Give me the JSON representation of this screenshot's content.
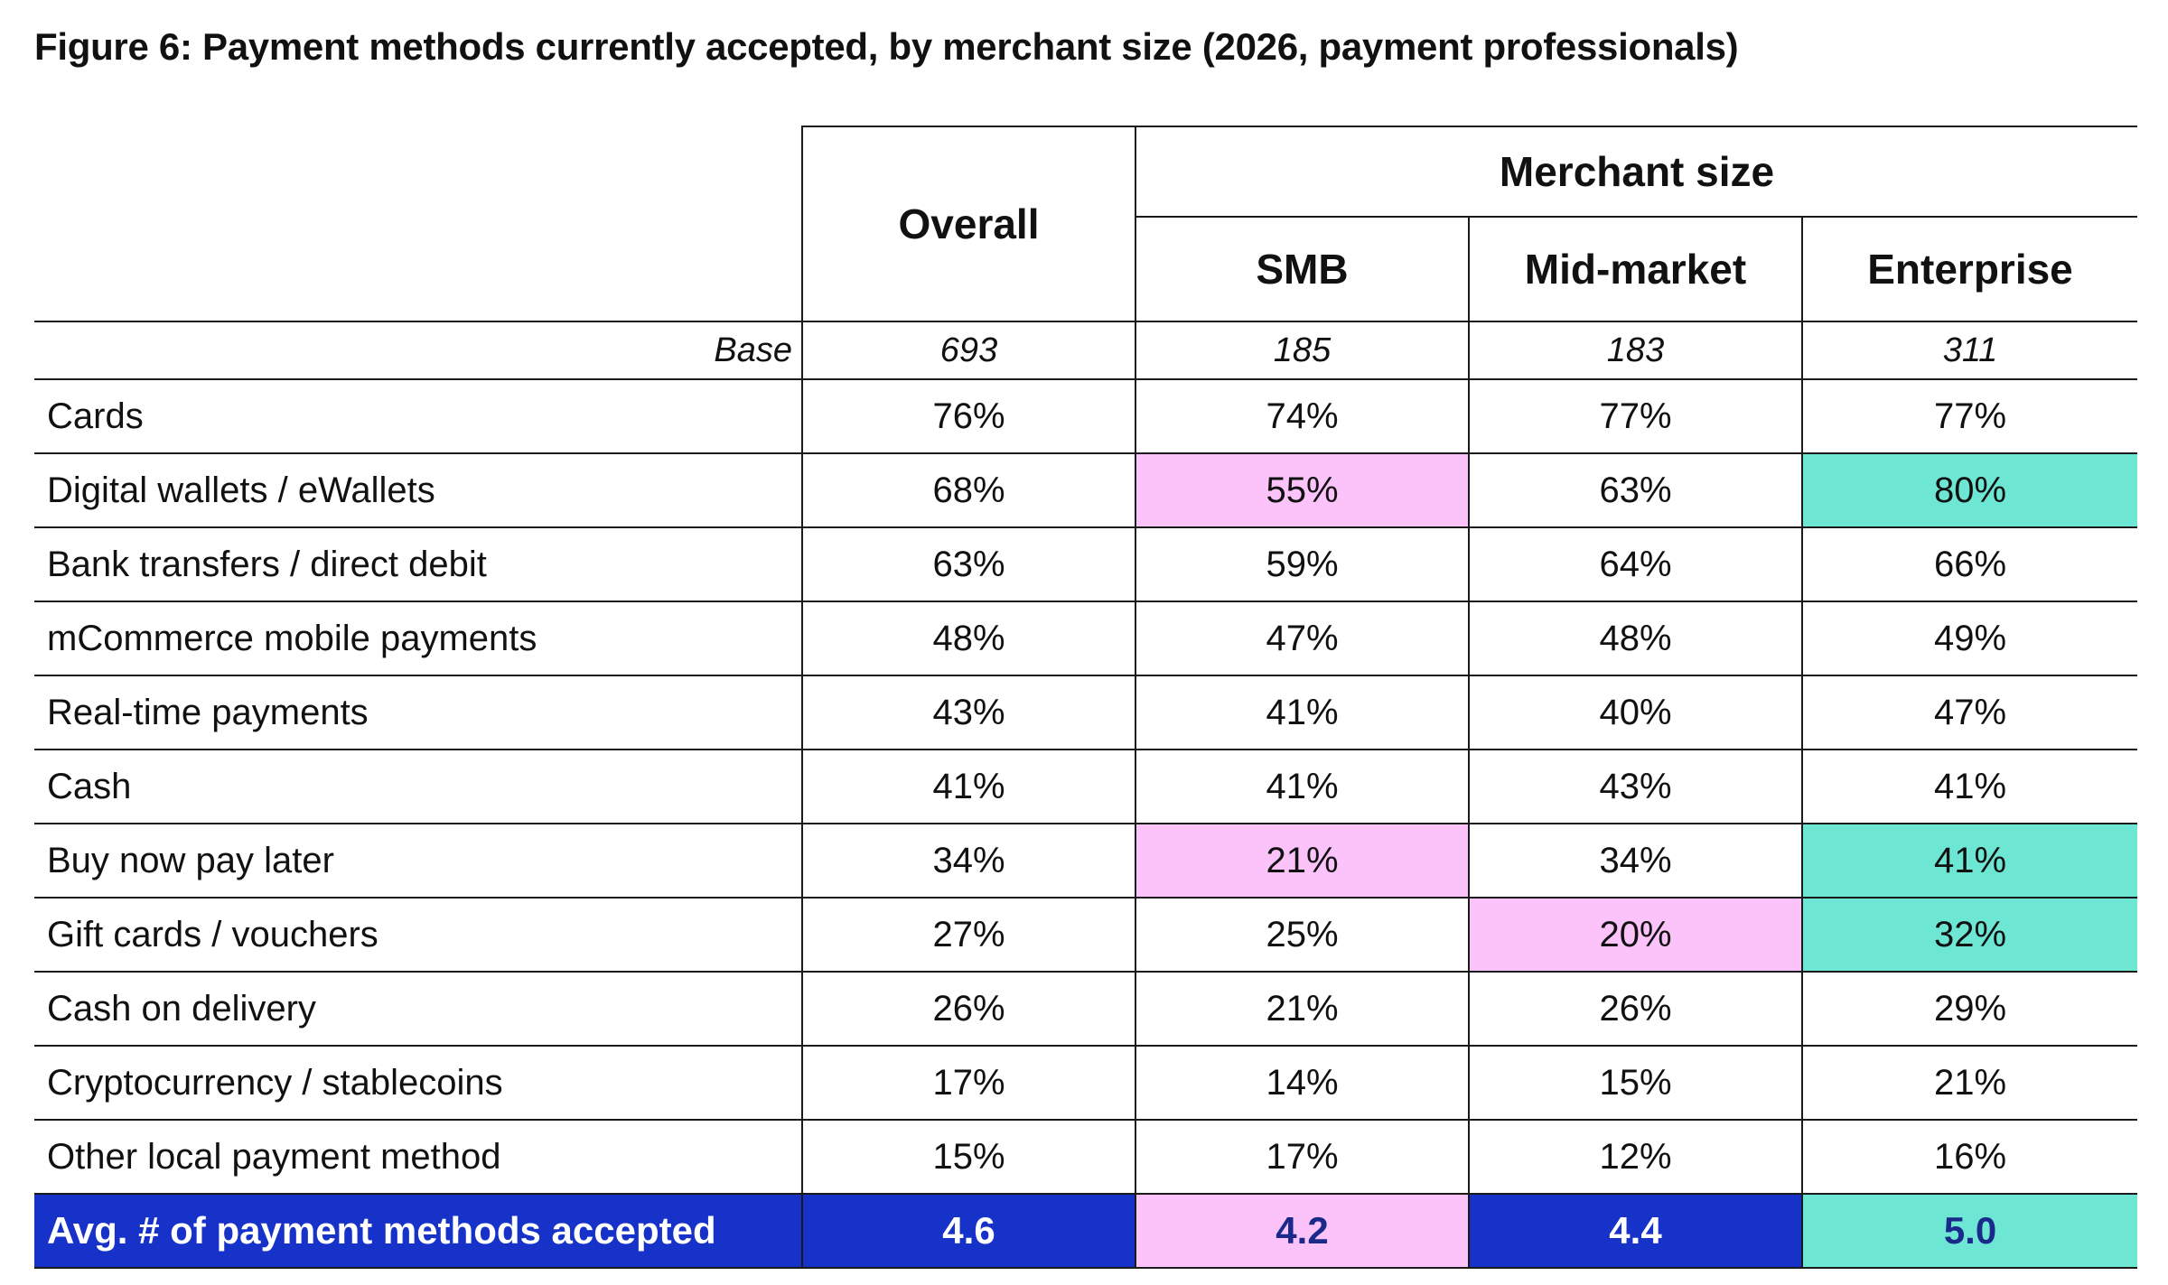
{
  "title": "Figure 6: Payment methods currently accepted, by merchant size (2026, payment professionals)",
  "header": {
    "overall": "Overall",
    "group": "Merchant size",
    "smb": "SMB",
    "mid": "Mid-market",
    "enterprise": "Enterprise"
  },
  "base": {
    "label": "Base",
    "overall": "693",
    "smb": "185",
    "mid": "183",
    "enterprise": "311"
  },
  "rows": [
    {
      "label": "Cards",
      "overall": "76%",
      "smb": "74%",
      "mid": "77%",
      "enterprise": "77%"
    },
    {
      "label": "Digital wallets / eWallets",
      "overall": "68%",
      "smb": "55%",
      "mid": "63%",
      "enterprise": "80%"
    },
    {
      "label": "Bank transfers / direct debit",
      "overall": "63%",
      "smb": "59%",
      "mid": "64%",
      "enterprise": "66%"
    },
    {
      "label": "mCommerce mobile payments",
      "overall": "48%",
      "smb": "47%",
      "mid": "48%",
      "enterprise": "49%"
    },
    {
      "label": "Real-time payments",
      "overall": "43%",
      "smb": "41%",
      "mid": "40%",
      "enterprise": "47%"
    },
    {
      "label": "Cash",
      "overall": "41%",
      "smb": "41%",
      "mid": "43%",
      "enterprise": "41%"
    },
    {
      "label": "Buy now pay later",
      "overall": "34%",
      "smb": "21%",
      "mid": "34%",
      "enterprise": "41%"
    },
    {
      "label": "Gift cards / vouchers",
      "overall": "27%",
      "smb": "25%",
      "mid": "20%",
      "enterprise": "32%"
    },
    {
      "label": "Cash on delivery",
      "overall": "26%",
      "smb": "21%",
      "mid": "26%",
      "enterprise": "29%"
    },
    {
      "label": "Cryptocurrency / stablecoins",
      "overall": "17%",
      "smb": "14%",
      "mid": "15%",
      "enterprise": "21%"
    },
    {
      "label": "Other local payment method",
      "overall": "15%",
      "smb": "17%",
      "mid": "12%",
      "enterprise": "16%"
    }
  ],
  "avg": {
    "label": "Avg. # of payment methods accepted",
    "overall": "4.6",
    "smb": "4.2",
    "mid": "4.4",
    "enterprise": "5.0"
  },
  "colors": {
    "highlight_low": "#fcc3fb",
    "highlight_high": "#6de6d4",
    "avg_row_bg": "#1632c8",
    "text": "#111111"
  }
}
